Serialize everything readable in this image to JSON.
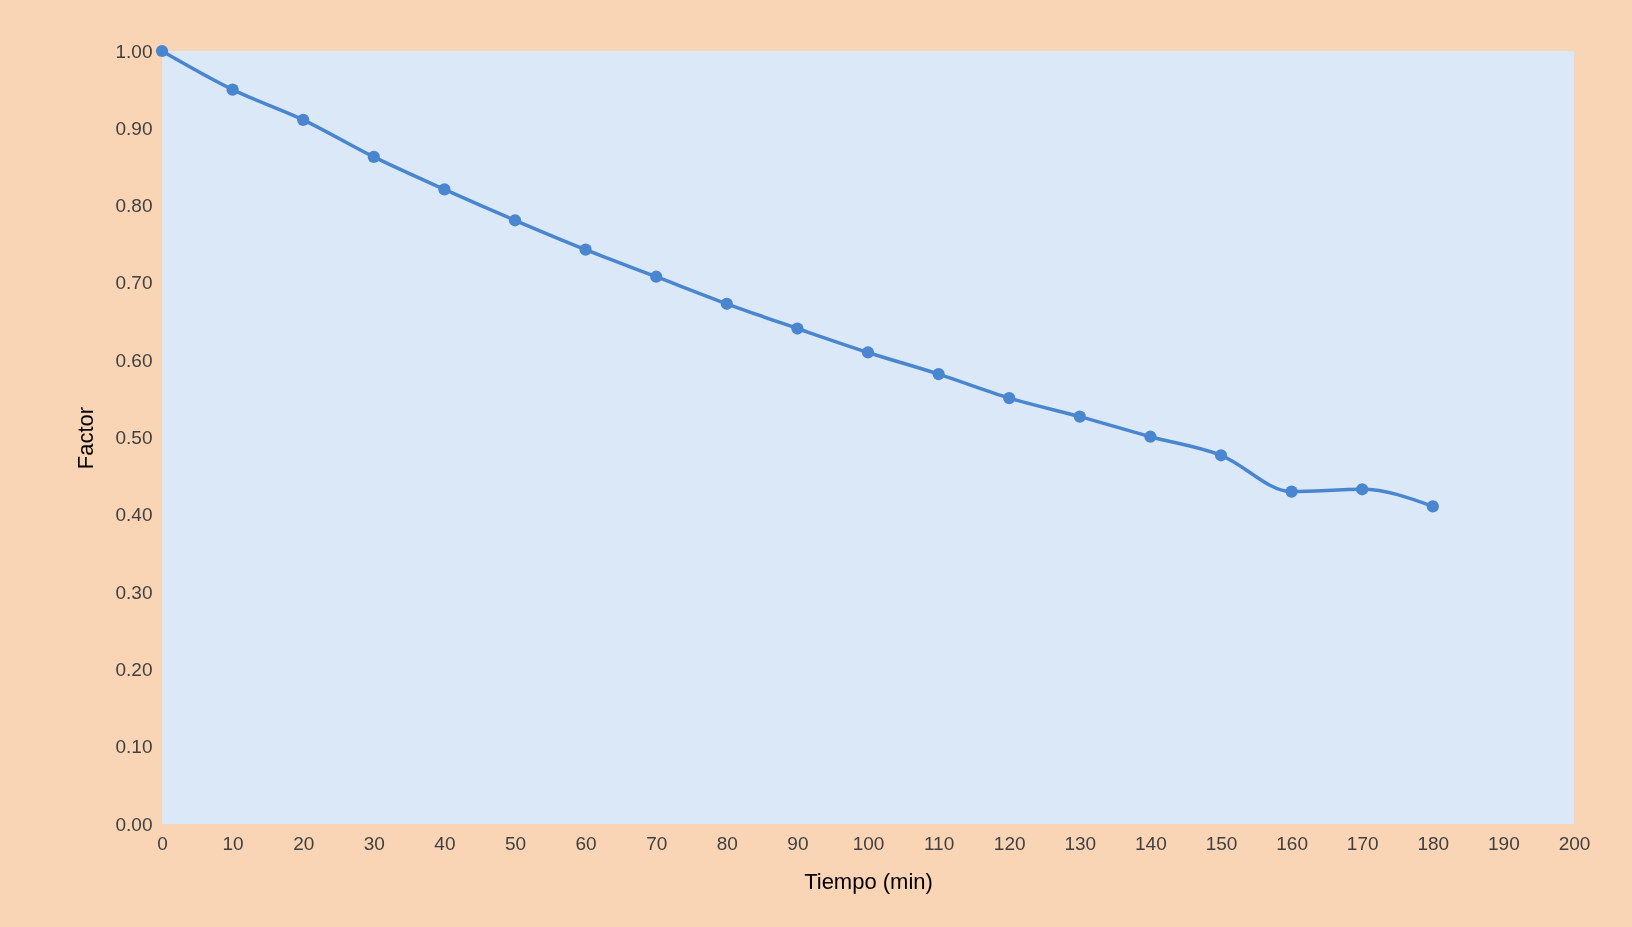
{
  "chart_data": {
    "type": "line",
    "xlabel": "Tiempo (min)",
    "ylabel": "Factor",
    "x": [
      0,
      10,
      20,
      30,
      40,
      50,
      60,
      70,
      80,
      90,
      100,
      110,
      120,
      130,
      140,
      150,
      160,
      170,
      180
    ],
    "series": [
      {
        "color": "#4a86cf",
        "values": [
          1.0,
          0.95,
          0.911,
          0.863,
          0.821,
          0.781,
          0.743,
          0.708,
          0.673,
          0.641,
          0.61,
          0.582,
          0.551,
          0.527,
          0.501,
          0.477,
          0.43,
          0.433,
          0.411
        ]
      }
    ],
    "xlim": [
      0,
      200
    ],
    "xticks": [
      0,
      10,
      20,
      30,
      40,
      50,
      60,
      70,
      80,
      90,
      100,
      110,
      120,
      130,
      140,
      150,
      160,
      170,
      180,
      190,
      200
    ],
    "ylim": [
      0,
      1
    ],
    "yticks": [
      {
        "value": 0,
        "label": "0.00"
      },
      {
        "value": 0.1,
        "label": "0.10"
      },
      {
        "value": 0.2,
        "label": "0.20"
      },
      {
        "value": 0.3,
        "label": "0.30"
      },
      {
        "value": 0.4,
        "label": "0.40"
      },
      {
        "value": 0.5,
        "label": "0.50"
      },
      {
        "value": 0.6,
        "label": "0.60"
      },
      {
        "value": 0.7,
        "label": "0.70"
      },
      {
        "value": 0.8,
        "label": "0.80"
      },
      {
        "value": 0.9,
        "label": "0.90"
      },
      {
        "value": 1.0,
        "label": "1.00"
      }
    ],
    "grid": false,
    "marker": "circle",
    "line_style": "solid"
  }
}
